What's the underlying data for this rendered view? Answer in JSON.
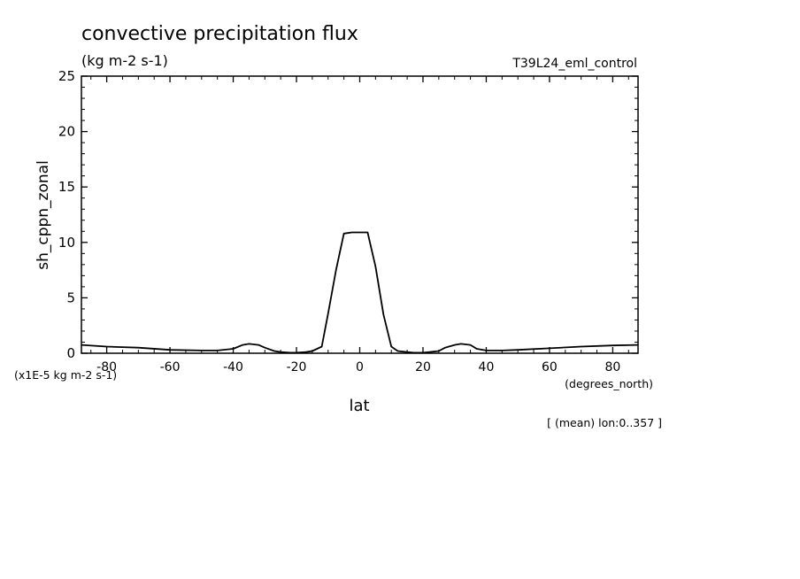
{
  "chart_data": {
    "type": "line",
    "title": "convective precipitation flux",
    "units": "(kg m-2 s-1)",
    "run_label": "T39L24_eml_control",
    "xlabel": "lat",
    "ylabel": "sh_cppn_zonal",
    "x_units": "(degrees_north)",
    "y_scale_note": "(x1E-5 kg m-2 s-1)",
    "footnote": "[ (mean) lon:0..357 ]",
    "xlim": [
      -88,
      88
    ],
    "ylim": [
      0,
      25
    ],
    "x_ticks": [
      -80,
      -60,
      -40,
      -20,
      0,
      20,
      40,
      60,
      80
    ],
    "y_ticks": [
      0,
      5,
      10,
      15,
      20,
      25
    ],
    "grid": false,
    "series": [
      {
        "x": [
          -88,
          -80,
          -70,
          -60,
          -50,
          -45,
          -40,
          -37,
          -35,
          -32,
          -30,
          -27,
          -25,
          -22,
          -20,
          -17,
          -15,
          -12,
          -10,
          -7.5,
          -5,
          -2.5,
          -1,
          1,
          2.5,
          5,
          7.5,
          10,
          12,
          15,
          17,
          20,
          22,
          25,
          27,
          30,
          32,
          35,
          37,
          40,
          45,
          50,
          60,
          70,
          80,
          88
        ],
        "y": [
          0.75,
          0.6,
          0.5,
          0.3,
          0.25,
          0.25,
          0.4,
          0.75,
          0.85,
          0.75,
          0.5,
          0.2,
          0.1,
          0.05,
          0.05,
          0.1,
          0.2,
          0.6,
          3.6,
          7.5,
          10.8,
          10.9,
          10.9,
          10.9,
          10.9,
          7.8,
          3.5,
          0.6,
          0.2,
          0.1,
          0.05,
          0.05,
          0.1,
          0.2,
          0.5,
          0.75,
          0.85,
          0.75,
          0.4,
          0.25,
          0.25,
          0.3,
          0.45,
          0.6,
          0.7,
          0.75
        ]
      }
    ]
  }
}
